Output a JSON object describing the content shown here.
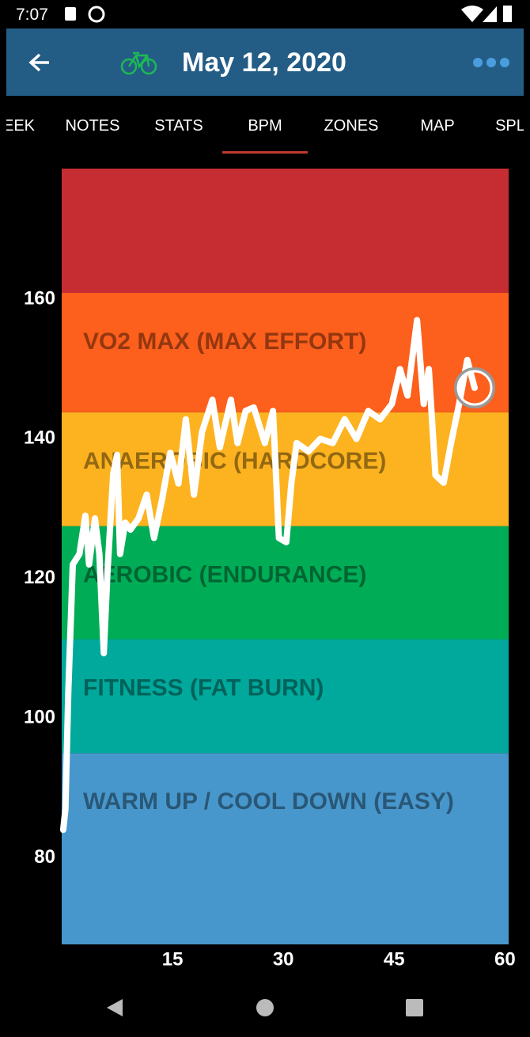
{
  "status_bar": {
    "time": "7:07"
  },
  "app_bar": {
    "title": "May 12, 2020"
  },
  "tabs": {
    "items": [
      "EEK",
      "NOTES",
      "STATS",
      "BPM",
      "ZONES",
      "MAP",
      "SPL"
    ],
    "selected": 3
  },
  "chart_data": {
    "type": "line",
    "x": [
      0.2,
      0.5,
      0.9,
      1.5,
      2.4,
      3.2,
      3.7,
      4.5,
      5.1,
      5.7,
      6.2,
      6.97,
      7.5,
      7.9,
      8.6,
      9.3,
      10.4,
      11.5,
      12.5,
      13.6,
      14.7,
      15.8,
      16.8,
      17.9,
      19.0,
      20.4,
      21.4,
      22.9,
      23.8,
      24.9,
      26,
      27.5,
      28.6,
      29.4,
      30.4,
      31.1,
      31.8,
      33.4,
      35,
      36.7,
      38.3,
      39.9,
      41.5,
      43.1,
      44.7,
      45.8,
      46.8,
      48.1,
      49,
      49.7,
      50.6,
      51.7,
      52.7,
      53.8,
      54.9,
      55.9
    ],
    "series": [
      {
        "color": "#ffffff",
        "values": [
          84,
          87,
          104,
          122,
          123.5,
          129,
          122,
          128.6,
          123.5,
          109.3,
          121,
          135,
          137.7,
          123.5,
          128,
          127,
          128.6,
          132,
          125.8,
          131.4,
          138,
          133.6,
          142.8,
          132,
          141,
          145.6,
          138.8,
          145.6,
          139.4,
          144,
          144.5,
          139.4,
          144,
          125.8,
          125.2,
          133.7,
          139.4,
          138.2,
          140,
          139.4,
          142.8,
          140,
          144,
          142.8,
          145,
          150,
          146.2,
          157,
          145,
          150,
          134.8,
          133.7,
          139.4,
          145,
          151.3,
          147.3
        ]
      }
    ],
    "zones": [
      {
        "label": "WARM UP / COOL DOWN (EASY)",
        "to": 95,
        "color": "#4897cc"
      },
      {
        "label": "FITNESS (FAT BURN)",
        "to": 111.3,
        "color": "#00a99c"
      },
      {
        "label": "AEROBIC (ENDURANCE)",
        "to": 127.5,
        "color": "#00ad56"
      },
      {
        "label": "ANAEROBIC (HARDCORE)",
        "to": 143.8,
        "color": "#fdb31f"
      },
      {
        "label": "VO2 MAX (MAX EFFORT)",
        "to": 160.9,
        "color": "#fd5f1c"
      },
      {
        "color": "#c62d33"
      }
    ],
    "xlim": [
      0,
      60.5
    ],
    "xticks": [
      15,
      30,
      45,
      60
    ],
    "ylim": [
      67.6,
      178.7
    ],
    "yticks": [
      80,
      100,
      120,
      140,
      160
    ]
  }
}
